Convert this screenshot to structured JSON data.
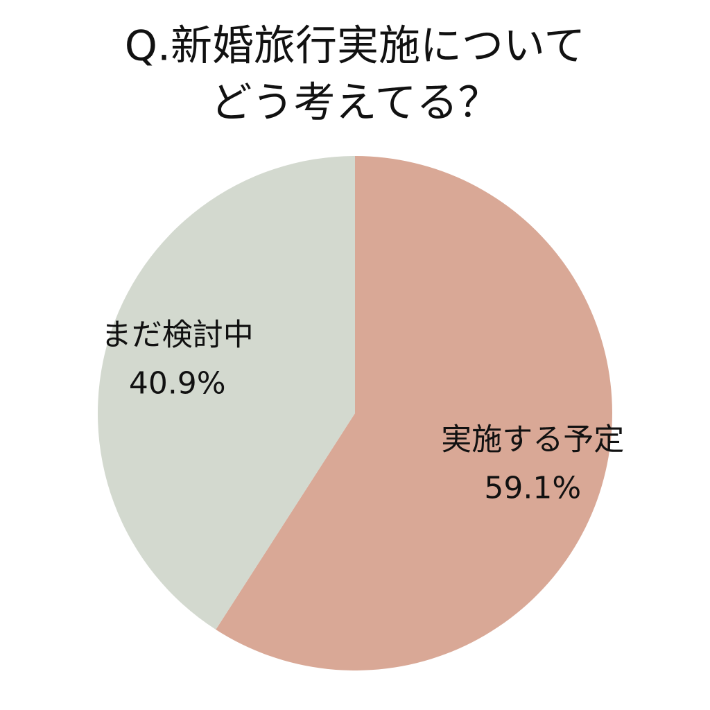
{
  "chart_data": {
    "type": "pie",
    "title": [
      "Q.新婚旅行実施について",
      "どう考えてる？"
    ],
    "categories": [
      "実施する予定",
      "まだ検討中"
    ],
    "values": [
      59.1,
      40.9
    ],
    "value_labels": [
      "59.1%",
      "40.9%"
    ],
    "colors": [
      "#d9a896",
      "#d3d9cf"
    ]
  }
}
